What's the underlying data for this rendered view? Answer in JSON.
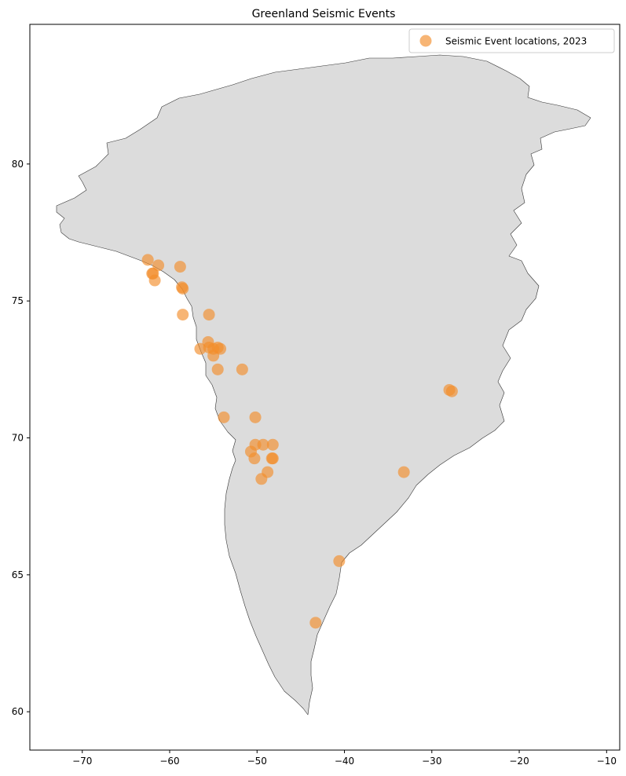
{
  "chart_data": {
    "type": "scatter",
    "title": "Greenland Seismic Events",
    "xlabel": "",
    "ylabel": "",
    "xlim": [
      -76,
      -8.5
    ],
    "ylim": [
      58.6,
      85.1
    ],
    "x_ticks": [
      -70,
      -60,
      -50,
      -40,
      -30,
      -20,
      -10
    ],
    "y_ticks": [
      60,
      65,
      70,
      75,
      80
    ],
    "x_tick_labels": [
      "−70",
      "−60",
      "−50",
      "−40",
      "−30",
      "−20",
      "−10"
    ],
    "y_tick_labels": [
      "60",
      "65",
      "70",
      "75",
      "80"
    ],
    "grid": false,
    "legend": {
      "location": "upper right",
      "entries": [
        "Seismic Event locations, 2023"
      ]
    },
    "land_color": "#dcdcdc",
    "coast_color": "#333333",
    "marker_color": "#f28e2b",
    "series": [
      {
        "name": "Seismic Event locations, 2023",
        "points": [
          [
            -62.5,
            76.5
          ],
          [
            -61.3,
            76.3
          ],
          [
            -62.0,
            76.0
          ],
          [
            -61.9,
            76.0
          ],
          [
            -61.7,
            75.75
          ],
          [
            -58.8,
            76.25
          ],
          [
            -58.6,
            75.5
          ],
          [
            -58.5,
            75.45
          ],
          [
            -58.5,
            74.5
          ],
          [
            -55.5,
            74.5
          ],
          [
            -55.6,
            73.5
          ],
          [
            -55.5,
            73.3
          ],
          [
            -56.5,
            73.25
          ],
          [
            -55.0,
            73.25
          ],
          [
            -54.5,
            73.3
          ],
          [
            -54.2,
            73.25
          ],
          [
            -55.0,
            73.0
          ],
          [
            -54.5,
            72.5
          ],
          [
            -51.7,
            72.5
          ],
          [
            -53.8,
            70.75
          ],
          [
            -50.2,
            70.75
          ],
          [
            -50.2,
            69.75
          ],
          [
            -49.3,
            69.75
          ],
          [
            -48.2,
            69.75
          ],
          [
            -50.7,
            69.5
          ],
          [
            -50.3,
            69.25
          ],
          [
            -48.2,
            69.25
          ],
          [
            -48.3,
            69.25
          ],
          [
            -48.8,
            68.75
          ],
          [
            -49.5,
            68.5
          ],
          [
            -28.0,
            71.75
          ],
          [
            -27.7,
            71.7
          ],
          [
            -33.2,
            68.75
          ],
          [
            -40.6,
            65.5
          ],
          [
            -43.3,
            63.25
          ]
        ]
      }
    ]
  }
}
